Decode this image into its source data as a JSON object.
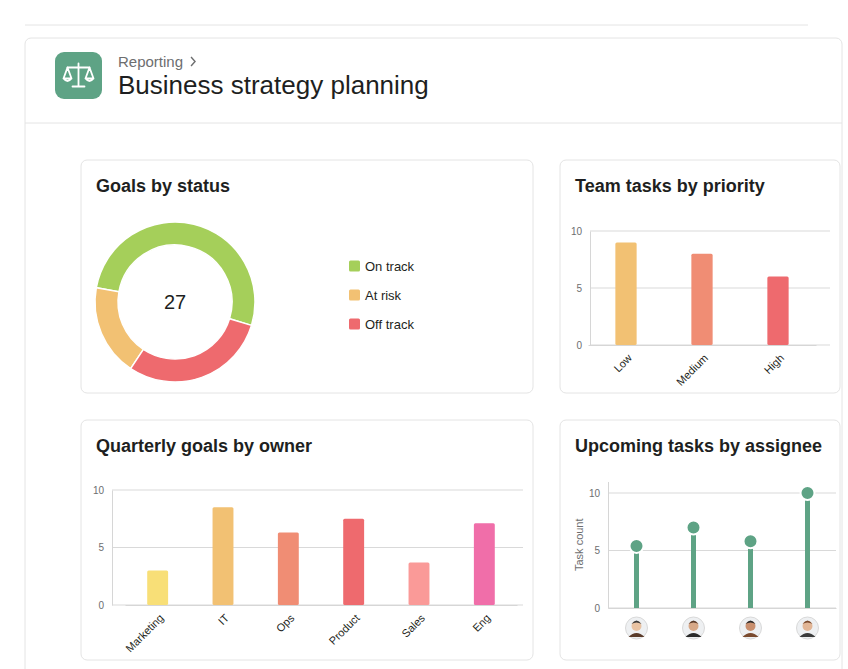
{
  "header": {
    "breadcrumb": "Reporting",
    "title": "Business strategy planning"
  },
  "chart_data": [
    {
      "type": "donut",
      "title": "Goals by status",
      "categories": [
        "On track",
        "At risk",
        "Off track"
      ],
      "values": [
        14,
        5,
        8
      ],
      "colors": [
        "#a5cf5a",
        "#f2c173",
        "#ee6a6e"
      ],
      "total": 27,
      "legend": "right"
    },
    {
      "type": "bar",
      "title": "Team tasks by priority",
      "categories": [
        "Low",
        "Medium",
        "High"
      ],
      "values": [
        9,
        8,
        6
      ],
      "colors": [
        "#f2c173",
        "#f08d74",
        "#ee6a6e"
      ],
      "ylim": [
        0,
        10
      ],
      "yticks": [
        0,
        5,
        10
      ],
      "grid": true
    },
    {
      "type": "bar",
      "title": "Quarterly goals by owner",
      "categories": [
        "Marketing",
        "IT",
        "Ops",
        "Product",
        "Sales",
        "Eng"
      ],
      "values": [
        3,
        8.5,
        6.3,
        7.5,
        3.7,
        7.1
      ],
      "colors": [
        "#f8df77",
        "#f2c173",
        "#f08d74",
        "#ee6a6e",
        "#fa9a98",
        "#f06ea9"
      ],
      "ylim": [
        0,
        10
      ],
      "yticks": [
        0,
        5,
        10
      ],
      "grid": true
    },
    {
      "type": "lollipop",
      "title": "Upcoming tasks by assignee",
      "ylabel": "Task count",
      "categories": [
        null,
        null,
        null,
        null
      ],
      "values": [
        5.4,
        7,
        5.8,
        10
      ],
      "color": "#5ea385",
      "marker": "circle",
      "tick_labels": "y",
      "ylim": [
        0,
        11
      ],
      "yticks": [
        0,
        5,
        10
      ],
      "grid": true
    }
  ]
}
